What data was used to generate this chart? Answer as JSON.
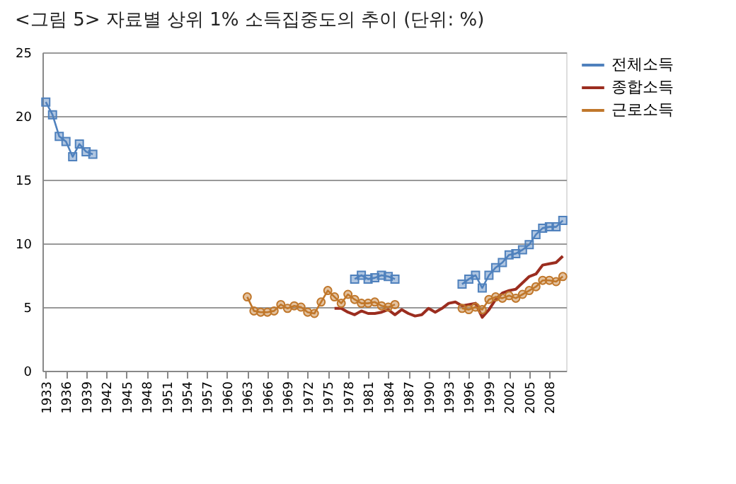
{
  "chart_data": {
    "type": "line",
    "title": "<그림 5> 자료별 상위 1% 소득집중도의 추이 (단위: %)",
    "categories": [
      "1933",
      null,
      null,
      "1936",
      null,
      null,
      "1939",
      null,
      null,
      "1942",
      null,
      null,
      "1945",
      null,
      null,
      "1948",
      null,
      null,
      "1951",
      null,
      null,
      "1954",
      null,
      null,
      "1957",
      null,
      null,
      "1960",
      null,
      null,
      "1963",
      null,
      null,
      "1966",
      null,
      null,
      "1969",
      null,
      null,
      "1972",
      null,
      null,
      "1975",
      null,
      null,
      "1978",
      null,
      null,
      "1981",
      null,
      null,
      "1984",
      null,
      null,
      "1987",
      null,
      null,
      "1990",
      null,
      null,
      "1993",
      null,
      null,
      "1996",
      null,
      null,
      "1999",
      null,
      null,
      "2002",
      null,
      null,
      "2005",
      null,
      null,
      "2008",
      null,
      null
    ],
    "series": [
      {
        "name": "전체소득",
        "color": "#4f81bd",
        "marker": "square",
        "values": [
          21.1,
          20.1,
          18.4,
          18.0,
          16.8,
          17.8,
          17.2,
          17.0,
          null,
          null,
          null,
          null,
          null,
          null,
          null,
          null,
          null,
          null,
          null,
          null,
          null,
          null,
          null,
          null,
          null,
          null,
          null,
          null,
          null,
          null,
          null,
          null,
          null,
          null,
          null,
          null,
          null,
          null,
          null,
          null,
          null,
          null,
          null,
          null,
          null,
          null,
          7.2,
          7.5,
          7.2,
          7.3,
          7.5,
          7.4,
          7.2,
          null,
          null,
          null,
          null,
          null,
          null,
          null,
          null,
          null,
          6.8,
          7.2,
          7.5,
          6.5,
          7.5,
          8.1,
          8.5,
          9.1,
          9.2,
          9.5,
          9.9,
          10.7,
          11.2,
          11.3,
          11.3,
          11.8
        ]
      },
      {
        "name": "종합소득",
        "color": "#9b2d1f",
        "marker": "none",
        "values": [
          null,
          null,
          null,
          null,
          null,
          null,
          null,
          null,
          null,
          null,
          null,
          null,
          null,
          null,
          null,
          null,
          null,
          null,
          null,
          null,
          null,
          null,
          null,
          null,
          null,
          null,
          null,
          null,
          null,
          null,
          null,
          null,
          null,
          null,
          null,
          null,
          null,
          null,
          null,
          null,
          null,
          null,
          null,
          4.9,
          4.9,
          4.6,
          4.4,
          4.7,
          4.5,
          4.5,
          4.6,
          4.8,
          4.4,
          4.8,
          4.5,
          4.3,
          4.4,
          4.9,
          4.6,
          4.9,
          5.3,
          5.4,
          5.1,
          5.2,
          5.3,
          4.2,
          4.8,
          5.6,
          6.1,
          6.3,
          6.4,
          6.9,
          7.4,
          7.6,
          8.3,
          8.4,
          8.5,
          9.0
        ]
      },
      {
        "name": "근로소득",
        "color": "#c0772b",
        "marker": "circle",
        "values": [
          null,
          null,
          null,
          null,
          null,
          null,
          null,
          null,
          null,
          null,
          null,
          null,
          null,
          null,
          null,
          null,
          null,
          null,
          null,
          null,
          null,
          null,
          null,
          null,
          null,
          null,
          null,
          null,
          null,
          null,
          5.8,
          4.7,
          4.6,
          4.6,
          4.7,
          5.2,
          4.9,
          5.1,
          5.0,
          4.6,
          4.5,
          5.4,
          6.3,
          5.8,
          5.3,
          6.0,
          5.6,
          5.3,
          5.3,
          5.4,
          5.1,
          5.0,
          5.2,
          null,
          null,
          null,
          null,
          null,
          null,
          null,
          null,
          null,
          4.9,
          4.8,
          5.0,
          4.8,
          5.6,
          5.8,
          5.7,
          5.9,
          5.7,
          6.0,
          6.3,
          6.6,
          7.1,
          7.1,
          7.0,
          7.4
        ]
      }
    ],
    "ylim": [
      0,
      25
    ],
    "yticks": [
      0,
      5,
      10,
      15,
      20,
      25
    ],
    "grid": "y",
    "legend": "right",
    "line_style": "solid"
  }
}
